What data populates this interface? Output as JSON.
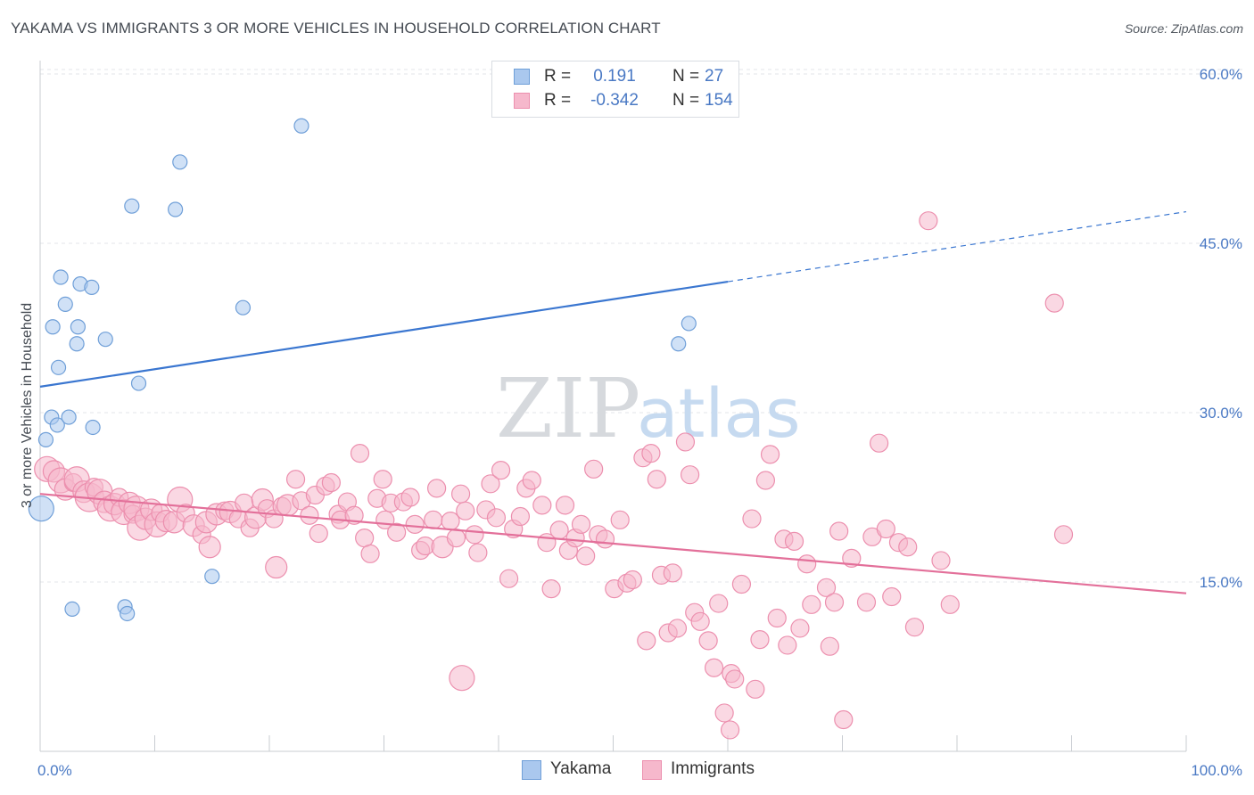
{
  "header": {
    "title": "YAKAMA VS IMMIGRANTS 3 OR MORE VEHICLES IN HOUSEHOLD CORRELATION CHART",
    "source": "Source: ZipAtlas.com"
  },
  "watermark": {
    "zip": "ZIP",
    "atlas": "atlas"
  },
  "legend": {
    "rows": [
      {
        "name": "Yakama",
        "r_label": "R =",
        "r_value": "0.191",
        "n_label": "N =",
        "n_value": "27"
      },
      {
        "name": "Immigrants",
        "r_label": "R =",
        "r_value": "-0.342",
        "n_label": "N =",
        "n_value": "154"
      }
    ]
  },
  "chart_data": {
    "type": "scatter",
    "title": "YAKAMA VS IMMIGRANTS 3 OR MORE VEHICLES IN HOUSEHOLD CORRELATION CHART",
    "xlabel": "",
    "ylabel": "3 or more Vehicles in Household",
    "xlim": [
      0,
      100
    ],
    "ylim": [
      0,
      63
    ],
    "x_tick_labels": [
      "0.0%",
      "100.0%"
    ],
    "y_ticks": [
      15,
      30,
      45,
      60
    ],
    "y_tick_labels": [
      "15.0%",
      "30.0%",
      "45.0%",
      "60.0%"
    ],
    "grid": true,
    "legend_position": "top-center",
    "colors": {
      "yakama_fill": "#aac8ee",
      "yakama_stroke": "#6f9fd8",
      "yakama_line": "#3a76d0",
      "immigrants_fill": "#f6b8cc",
      "immigrants_stroke": "#ec8fae",
      "immigrants_line": "#e3709a",
      "axis_text": "#4a79c4",
      "grid": "#e3e6ea"
    },
    "series": [
      {
        "name": "Yakama",
        "trend": {
          "x0": 0,
          "y0": 32.3,
          "x1": 60,
          "y1": 41.6,
          "dash_to_x": 100,
          "dash_to_y": 47.8
        },
        "points": [
          [
            0.1,
            21.5,
            14
          ],
          [
            0.5,
            27.6,
            8
          ],
          [
            1.0,
            29.6,
            8
          ],
          [
            1.1,
            37.6,
            8
          ],
          [
            1.5,
            28.9,
            8
          ],
          [
            1.6,
            34.0,
            8
          ],
          [
            1.8,
            42.0,
            8
          ],
          [
            2.2,
            39.6,
            8
          ],
          [
            2.5,
            29.6,
            8
          ],
          [
            2.8,
            12.6,
            8
          ],
          [
            3.2,
            36.1,
            8
          ],
          [
            3.3,
            37.6,
            8
          ],
          [
            3.5,
            41.4,
            8
          ],
          [
            4.5,
            41.1,
            8
          ],
          [
            4.6,
            28.7,
            8
          ],
          [
            5.7,
            36.5,
            8
          ],
          [
            7.4,
            12.8,
            8
          ],
          [
            7.6,
            12.2,
            8
          ],
          [
            8.0,
            48.3,
            8
          ],
          [
            8.6,
            32.6,
            8
          ],
          [
            11.8,
            48.0,
            8
          ],
          [
            12.2,
            52.2,
            8
          ],
          [
            15.0,
            15.5,
            8
          ],
          [
            17.7,
            39.3,
            8
          ],
          [
            22.8,
            55.4,
            8
          ],
          [
            55.7,
            36.1,
            8
          ],
          [
            56.6,
            37.9,
            8
          ]
        ]
      },
      {
        "name": "Immigrants",
        "trend": {
          "x0": 0,
          "y0": 22.8,
          "x1": 100,
          "y1": 14.0
        },
        "points": [
          [
            0.6,
            25.0,
            14
          ],
          [
            1.2,
            24.8,
            12
          ],
          [
            1.8,
            24.0,
            14
          ],
          [
            2.2,
            23.2,
            12
          ],
          [
            2.9,
            23.8,
            10
          ],
          [
            3.2,
            24.1,
            14
          ],
          [
            3.8,
            23.0,
            12
          ],
          [
            4.3,
            22.5,
            16
          ],
          [
            4.7,
            23.4,
            10
          ],
          [
            5.2,
            23.0,
            14
          ],
          [
            5.6,
            22.1,
            12
          ],
          [
            6.1,
            21.5,
            14
          ],
          [
            6.5,
            21.9,
            12
          ],
          [
            6.9,
            22.5,
            10
          ],
          [
            7.3,
            21.2,
            14
          ],
          [
            7.8,
            22.0,
            12
          ],
          [
            8.1,
            21.0,
            10
          ],
          [
            8.4,
            21.5,
            14
          ],
          [
            8.7,
            19.8,
            14
          ],
          [
            9.2,
            20.6,
            12
          ],
          [
            9.7,
            21.4,
            12
          ],
          [
            10.2,
            20.1,
            14
          ],
          [
            10.5,
            21.1,
            10
          ],
          [
            11.0,
            20.4,
            12
          ],
          [
            11.7,
            20.3,
            12
          ],
          [
            12.2,
            22.3,
            14
          ],
          [
            12.7,
            21.1,
            10
          ],
          [
            13.4,
            20.0,
            12
          ],
          [
            14.1,
            19.2,
            10
          ],
          [
            14.5,
            20.3,
            12
          ],
          [
            14.8,
            18.1,
            12
          ],
          [
            15.4,
            21.0,
            12
          ],
          [
            16.1,
            21.3,
            10
          ],
          [
            16.6,
            21.2,
            12
          ],
          [
            17.3,
            20.6,
            10
          ],
          [
            17.8,
            22.0,
            10
          ],
          [
            18.3,
            19.8,
            10
          ],
          [
            18.8,
            20.7,
            12
          ],
          [
            19.4,
            22.3,
            12
          ],
          [
            19.8,
            21.5,
            10
          ],
          [
            20.4,
            20.6,
            10
          ],
          [
            20.6,
            16.3,
            12
          ],
          [
            21.1,
            21.7,
            10
          ],
          [
            21.6,
            21.8,
            12
          ],
          [
            22.3,
            24.1,
            10
          ],
          [
            22.8,
            22.2,
            10
          ],
          [
            23.5,
            20.9,
            10
          ],
          [
            24.0,
            22.7,
            10
          ],
          [
            24.3,
            19.3,
            10
          ],
          [
            24.9,
            23.5,
            10
          ],
          [
            25.4,
            23.8,
            10
          ],
          [
            26.0,
            21.0,
            10
          ],
          [
            26.2,
            20.5,
            10
          ],
          [
            26.8,
            22.1,
            10
          ],
          [
            27.4,
            20.9,
            10
          ],
          [
            27.9,
            26.4,
            10
          ],
          [
            28.3,
            18.9,
            10
          ],
          [
            28.8,
            17.5,
            10
          ],
          [
            29.4,
            22.4,
            10
          ],
          [
            29.9,
            24.1,
            10
          ],
          [
            30.1,
            20.5,
            10
          ],
          [
            30.6,
            22.0,
            10
          ],
          [
            31.1,
            19.4,
            10
          ],
          [
            31.7,
            22.1,
            10
          ],
          [
            32.3,
            22.5,
            10
          ],
          [
            32.7,
            20.1,
            10
          ],
          [
            33.2,
            17.8,
            10
          ],
          [
            33.6,
            18.2,
            10
          ],
          [
            34.3,
            20.5,
            10
          ],
          [
            34.6,
            23.3,
            10
          ],
          [
            35.1,
            18.1,
            12
          ],
          [
            35.8,
            20.4,
            10
          ],
          [
            36.3,
            18.9,
            10
          ],
          [
            36.7,
            22.8,
            10
          ],
          [
            37.1,
            21.3,
            10
          ],
          [
            37.9,
            19.2,
            10
          ],
          [
            38.2,
            17.6,
            10
          ],
          [
            38.9,
            21.4,
            10
          ],
          [
            39.3,
            23.7,
            10
          ],
          [
            39.8,
            20.7,
            10
          ],
          [
            40.2,
            24.9,
            10
          ],
          [
            40.9,
            15.3,
            10
          ],
          [
            41.3,
            19.7,
            10
          ],
          [
            41.9,
            20.8,
            10
          ],
          [
            42.4,
            23.3,
            10
          ],
          [
            42.9,
            24.0,
            10
          ],
          [
            43.8,
            21.8,
            10
          ],
          [
            44.2,
            18.5,
            10
          ],
          [
            44.6,
            14.4,
            10
          ],
          [
            45.3,
            19.6,
            10
          ],
          [
            45.8,
            21.8,
            10
          ],
          [
            46.1,
            17.8,
            10
          ],
          [
            46.7,
            18.9,
            10
          ],
          [
            47.2,
            20.1,
            10
          ],
          [
            47.6,
            17.3,
            10
          ],
          [
            48.3,
            25.0,
            10
          ],
          [
            48.7,
            19.2,
            10
          ],
          [
            49.3,
            18.8,
            10
          ],
          [
            50.1,
            14.4,
            10
          ],
          [
            50.6,
            20.5,
            10
          ],
          [
            51.2,
            14.9,
            10
          ],
          [
            51.7,
            15.2,
            10
          ],
          [
            52.6,
            26.0,
            10
          ],
          [
            52.9,
            9.8,
            10
          ],
          [
            53.3,
            26.4,
            10
          ],
          [
            53.8,
            24.1,
            10
          ],
          [
            54.2,
            15.6,
            10
          ],
          [
            54.8,
            10.5,
            10
          ],
          [
            55.2,
            15.8,
            10
          ],
          [
            55.6,
            10.9,
            10
          ],
          [
            56.3,
            27.4,
            10
          ],
          [
            56.7,
            24.5,
            10
          ],
          [
            57.1,
            12.3,
            10
          ],
          [
            57.6,
            11.5,
            10
          ],
          [
            58.3,
            9.8,
            10
          ],
          [
            58.8,
            7.4,
            10
          ],
          [
            59.2,
            13.1,
            10
          ],
          [
            59.7,
            3.4,
            10
          ],
          [
            60.2,
            1.9,
            10
          ],
          [
            60.3,
            6.9,
            10
          ],
          [
            60.6,
            6.4,
            10
          ],
          [
            61.2,
            14.8,
            10
          ],
          [
            62.1,
            20.6,
            10
          ],
          [
            62.4,
            5.5,
            10
          ],
          [
            62.8,
            9.9,
            10
          ],
          [
            63.3,
            24.0,
            10
          ],
          [
            63.7,
            26.3,
            10
          ],
          [
            64.3,
            11.8,
            10
          ],
          [
            64.9,
            18.8,
            10
          ],
          [
            65.2,
            9.4,
            10
          ],
          [
            65.8,
            18.6,
            10
          ],
          [
            66.3,
            10.9,
            10
          ],
          [
            66.9,
            16.6,
            10
          ],
          [
            67.3,
            13.0,
            10
          ],
          [
            68.6,
            14.5,
            10
          ],
          [
            68.9,
            9.3,
            10
          ],
          [
            69.3,
            13.2,
            10
          ],
          [
            69.7,
            19.5,
            10
          ],
          [
            70.1,
            2.8,
            10
          ],
          [
            70.8,
            17.1,
            10
          ],
          [
            72.1,
            13.2,
            10
          ],
          [
            72.6,
            19.0,
            10
          ],
          [
            73.2,
            27.3,
            10
          ],
          [
            73.8,
            19.7,
            10
          ],
          [
            74.3,
            13.7,
            10
          ],
          [
            74.9,
            18.5,
            10
          ],
          [
            75.7,
            18.1,
            10
          ],
          [
            76.3,
            11.0,
            10
          ],
          [
            77.5,
            47.0,
            10
          ],
          [
            78.6,
            16.9,
            10
          ],
          [
            79.4,
            13.0,
            10
          ],
          [
            88.5,
            39.7,
            10
          ],
          [
            89.3,
            19.2,
            10
          ],
          [
            36.8,
            6.5,
            14
          ]
        ]
      }
    ]
  },
  "bottom_legend": {
    "items": [
      "Yakama",
      "Immigrants"
    ]
  }
}
